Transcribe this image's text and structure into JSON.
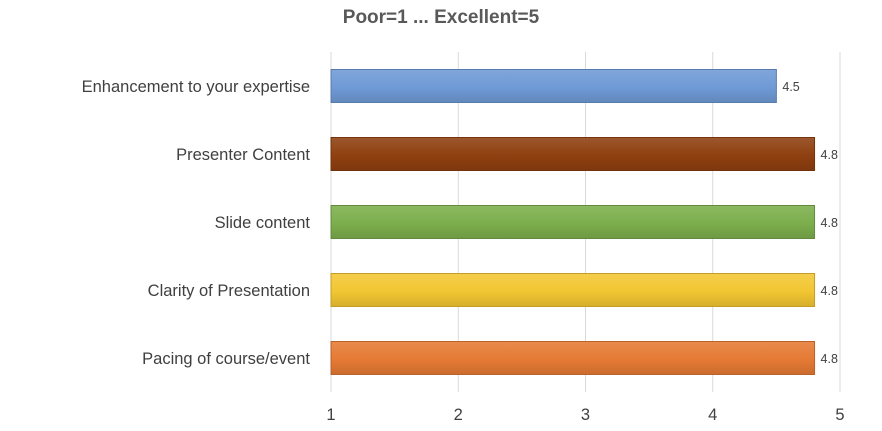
{
  "chart_data": {
    "type": "bar",
    "orientation": "horizontal",
    "title": "Poor=1 ... Excellent=5",
    "categories": [
      "Enhancement to your expertise",
      "Presenter Content",
      "Slide content",
      "Clarity of Presentation",
      "Pacing of course/event"
    ],
    "values": [
      4.5,
      4.8,
      4.8,
      4.8,
      4.8
    ],
    "data_labels": [
      "4.5",
      "4.8",
      "4.8",
      "4.8",
      "4.8"
    ],
    "colors": [
      "#6f9ad6",
      "#8f4010",
      "#7cae4c",
      "#f2c632",
      "#e57a34"
    ],
    "xlim": [
      1,
      5
    ],
    "xticks": [
      "1",
      "2",
      "3",
      "4",
      "5"
    ],
    "xlabel": "",
    "ylabel": "",
    "grid": "vertical",
    "legend": "none"
  }
}
